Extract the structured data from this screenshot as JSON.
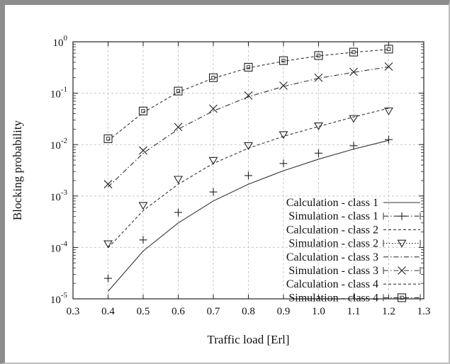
{
  "chart_data": {
    "type": "line",
    "title": "",
    "xlabel": "Traffic load [Erl]",
    "ylabel": "Blocking probability",
    "xlim": [
      0.3,
      1.3
    ],
    "ylim": [
      1e-05,
      1
    ],
    "yscale": "log",
    "grid": true,
    "legend_position": "bottom-right",
    "x_ticks": [
      "0.3",
      "0.4",
      "0.5",
      "0.6",
      "0.7",
      "0.8",
      "0.9",
      "1.0",
      "1.1",
      "1.2",
      "1.3"
    ],
    "y_ticks": [
      {
        "base": "10",
        "exp": "-5",
        "value": 1e-05
      },
      {
        "base": "10",
        "exp": "-4",
        "value": 0.0001
      },
      {
        "base": "10",
        "exp": "-3",
        "value": 0.001
      },
      {
        "base": "10",
        "exp": "-2",
        "value": 0.01
      },
      {
        "base": "10",
        "exp": "-1",
        "value": 0.1
      },
      {
        "base": "10",
        "exp": "0",
        "value": 1
      }
    ],
    "x": [
      0.4,
      0.5,
      0.6,
      0.7,
      0.8,
      0.9,
      1.0,
      1.1,
      1.2
    ],
    "series": [
      {
        "name": "Calculation - class 1",
        "kind": "line",
        "dash": "solid",
        "marker": "none",
        "values": [
          1.4e-05,
          8.5e-05,
          0.0003,
          0.0008,
          0.0017,
          0.0031,
          0.0052,
          0.0082,
          0.0121
        ]
      },
      {
        "name": "Simulation - class 1",
        "kind": "markers",
        "dash": "dashdot",
        "marker": "plus",
        "values": [
          2.5e-05,
          0.00014,
          0.00048,
          0.0012,
          0.0025,
          0.0043,
          0.0068,
          0.0095,
          0.0125
        ]
      },
      {
        "name": "Calculation - class 2",
        "kind": "line",
        "dash": "dashed",
        "marker": "none",
        "values": [
          9.8e-05,
          0.00052,
          0.0017,
          0.0043,
          0.0085,
          0.0145,
          0.0225,
          0.0345,
          0.051
        ]
      },
      {
        "name": "Simulation - class 2",
        "kind": "markers",
        "dash": "dotted",
        "marker": "triangle",
        "values": [
          0.000117,
          0.00065,
          0.0021,
          0.0049,
          0.0095,
          0.0155,
          0.023,
          0.032,
          0.045
        ]
      },
      {
        "name": "Calculation - class 3",
        "kind": "line",
        "dash": "dashdot",
        "marker": "none",
        "values": [
          0.0015,
          0.0068,
          0.02,
          0.045,
          0.085,
          0.135,
          0.195,
          0.255,
          0.325
        ]
      },
      {
        "name": "Simulation - class 3",
        "kind": "markers",
        "dash": "dashdot",
        "marker": "cross",
        "values": [
          0.0017,
          0.0077,
          0.022,
          0.05,
          0.09,
          0.14,
          0.2,
          0.26,
          0.33
        ]
      },
      {
        "name": "Calculation - class 4",
        "kind": "line",
        "dash": "dashed",
        "marker": "none",
        "values": [
          0.012,
          0.042,
          0.105,
          0.195,
          0.31,
          0.42,
          0.53,
          0.625,
          0.71
        ]
      },
      {
        "name": "Simulation - class 4",
        "kind": "markers",
        "dash": "dashdot",
        "marker": "square",
        "values": [
          0.013,
          0.045,
          0.11,
          0.2,
          0.32,
          0.43,
          0.54,
          0.63,
          0.72
        ]
      }
    ]
  }
}
